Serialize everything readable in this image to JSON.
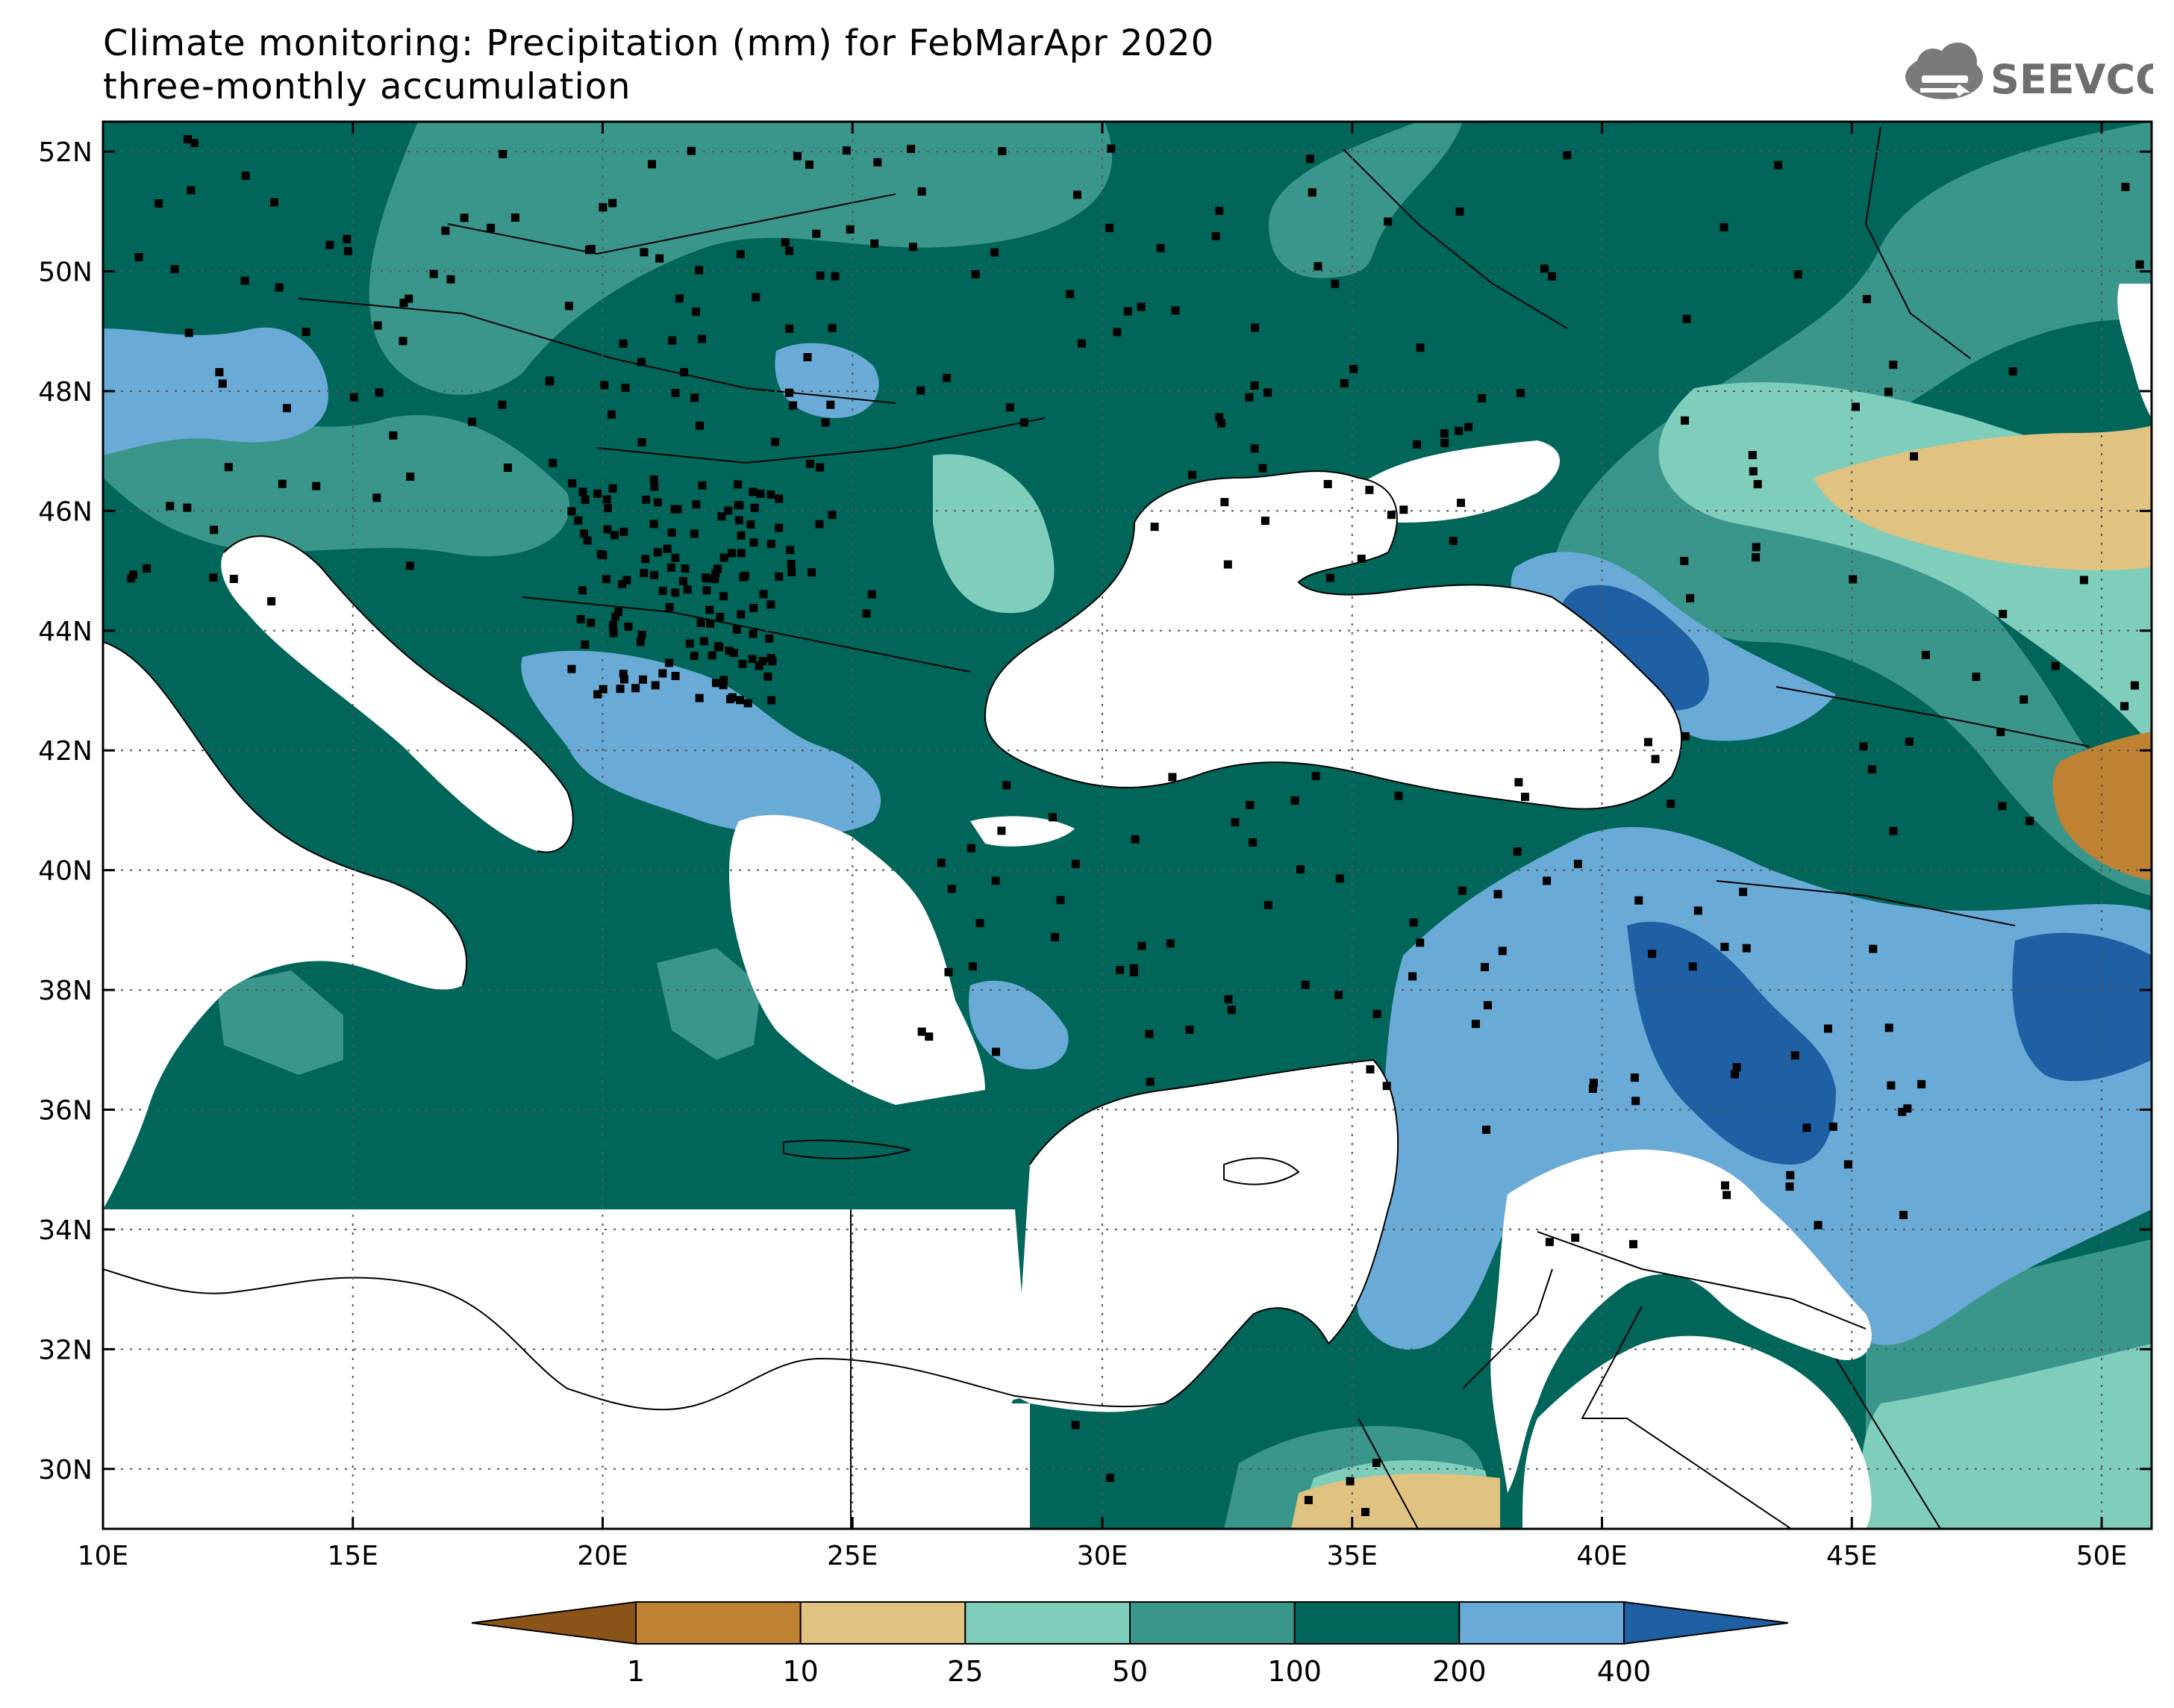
{
  "title": {
    "line1": "Climate monitoring: Precipitation (mm) for FebMarApr 2020",
    "line2": "three-monthly accumulation"
  },
  "logo": {
    "text": "SEEVCCC",
    "icon": "cloud-icon"
  },
  "map": {
    "lon_range": [
      10,
      51
    ],
    "lat_range": [
      29,
      52.5
    ],
    "lat_ticks": [
      "52N",
      "50N",
      "48N",
      "46N",
      "44N",
      "42N",
      "40N",
      "38N",
      "36N",
      "34N",
      "32N",
      "30N"
    ],
    "lon_ticks": [
      "10E",
      "15E",
      "20E",
      "25E",
      "30E",
      "35E",
      "40E",
      "45E",
      "50E"
    ],
    "gridlines": "dotted"
  },
  "colorbar": {
    "boundaries": [
      "1",
      "10",
      "25",
      "50",
      "100",
      "200",
      "400"
    ],
    "colors": [
      "#8a5418",
      "#be8232",
      "#e0c281",
      "#7fcdbb",
      "#3a968a",
      "#00665a",
      "#6aaad6",
      "#1f5fa3"
    ]
  }
}
